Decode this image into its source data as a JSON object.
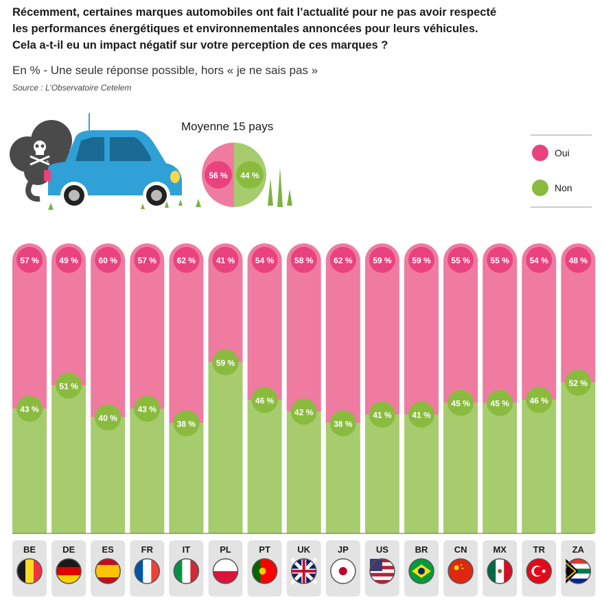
{
  "header": {
    "title_lines": [
      "Récemment, certaines marques automobiles ont fait l’actualité pour ne pas avoir respecté",
      "les performances énergétiques et environnementales annoncées pour leurs véhicules.",
      "Cela a-t-il eu un impact négatif sur votre perception de ces marques ?"
    ],
    "subtitle": "En % - Une seule réponse possible, hors « je ne sais pas »",
    "source": "Source : L’Observatoire Cetelem"
  },
  "average": {
    "title": "Moyenne 15 pays",
    "oui": 56,
    "non": 44,
    "oui_label": "56 %",
    "non_label": "44 %"
  },
  "colors": {
    "oui": "#ef7ba0",
    "oui_circle": "#e8437f",
    "non": "#a6cc6e",
    "non_circle": "#8abb3f",
    "country_bar": "#e3e3e3"
  },
  "chart_data": {
    "type": "bar",
    "stacked": true,
    "categories": [
      "BE",
      "DE",
      "ES",
      "FR",
      "IT",
      "PL",
      "PT",
      "UK",
      "JP",
      "US",
      "BR",
      "CN",
      "MX",
      "TR",
      "ZA"
    ],
    "series": [
      {
        "name": "Oui",
        "values": [
          57,
          49,
          60,
          57,
          62,
          41,
          54,
          58,
          62,
          59,
          59,
          55,
          55,
          54,
          48
        ]
      },
      {
        "name": "Non",
        "values": [
          43,
          51,
          40,
          43,
          38,
          59,
          46,
          42,
          38,
          41,
          41,
          45,
          45,
          46,
          52
        ]
      }
    ],
    "oui_labels": [
      "57 %",
      "49 %",
      "60 %",
      "57 %",
      "62 %",
      "41 %",
      "54 %",
      "58 %",
      "62 %",
      "59 %",
      "59 %",
      "55 %",
      "55 %",
      "54 %",
      "48 %"
    ],
    "non_labels": [
      "43 %",
      "51 %",
      "40 %",
      "43 %",
      "38 %",
      "59 %",
      "46 %",
      "42 %",
      "38 %",
      "41 %",
      "41 %",
      "45 %",
      "45 %",
      "46 %",
      "52 %"
    ],
    "legend": [
      "Oui",
      "Non"
    ],
    "legend_position": "top-right",
    "ylim": [
      0,
      100
    ]
  }
}
